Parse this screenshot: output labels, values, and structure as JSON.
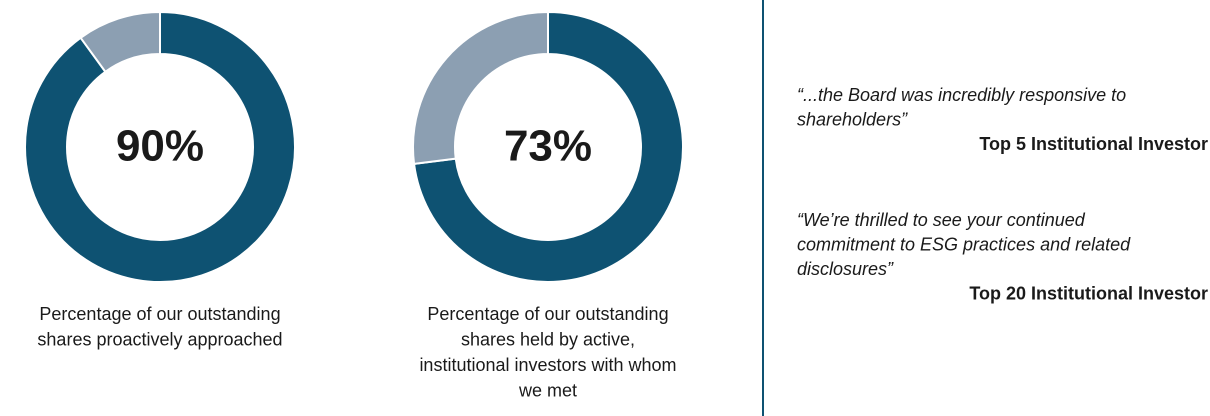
{
  "chart_data": [
    {
      "type": "pie",
      "donut": true,
      "values": [
        90,
        10
      ],
      "value_labels": [
        "90%",
        null
      ],
      "colors": [
        "#0e5272",
        "#8c9fb2"
      ],
      "caption": [
        "Percentage of our outstanding",
        "shares proactively approached"
      ]
    },
    {
      "type": "pie",
      "donut": true,
      "values": [
        73,
        27
      ],
      "value_labels": [
        "73%",
        null
      ],
      "colors": [
        "#0e5272",
        "#8c9fb2"
      ],
      "caption": [
        "Percentage of our outstanding",
        "shares held by active,",
        "institutional investors with whom",
        "we met"
      ]
    }
  ],
  "quotes": [
    {
      "lines": [
        "“...the Board was incredibly responsive to",
        "shareholders”"
      ],
      "source": "Top 5 Institutional Investor"
    },
    {
      "lines": [
        "“We’re thrilled to see your continued",
        "commitment to ESG practices and related",
        "disclosures”"
      ],
      "source": "Top 20 Institutional Investor"
    }
  ]
}
